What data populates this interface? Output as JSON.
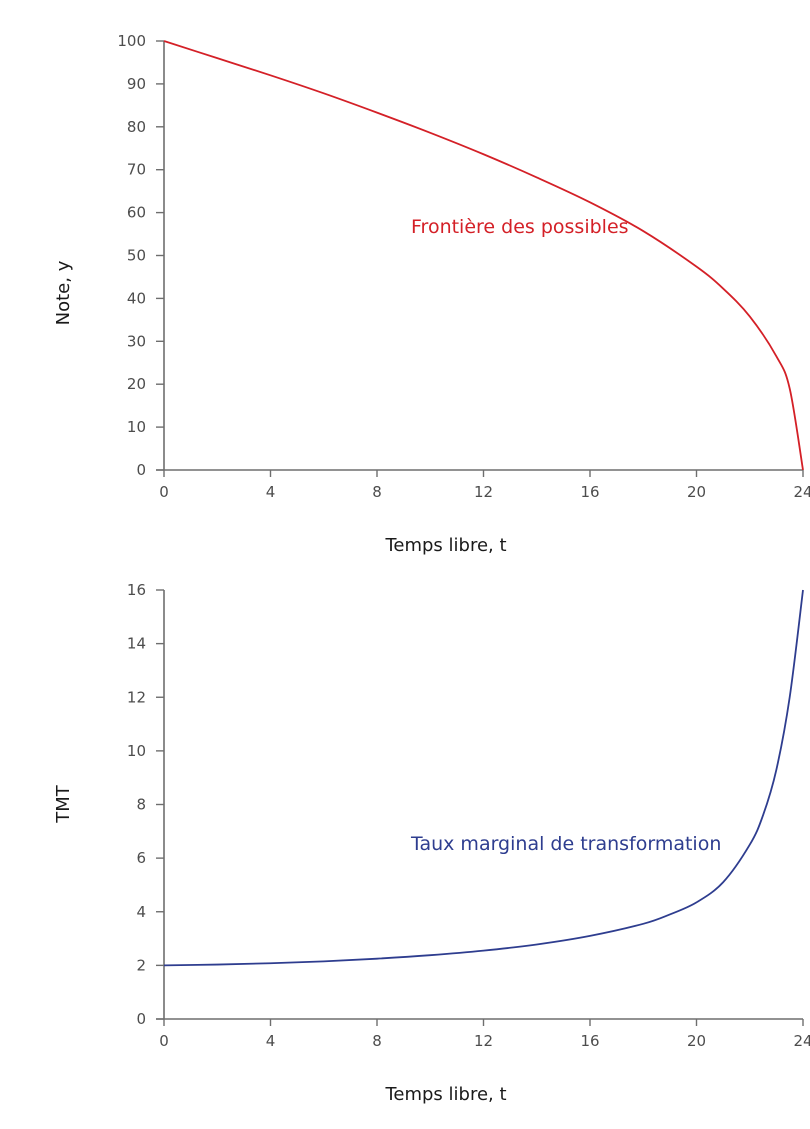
{
  "chart_data": [
    {
      "type": "line",
      "title": "",
      "xlabel": "Temps libre, t",
      "ylabel": "Note, y",
      "xlim": [
        0,
        24
      ],
      "ylim": [
        0,
        100
      ],
      "grid": false,
      "x_ticks": [
        0,
        4,
        8,
        12,
        16,
        20,
        24
      ],
      "y_ticks": [
        0,
        10,
        20,
        30,
        40,
        50,
        60,
        70,
        80,
        90,
        100
      ],
      "series": [
        {
          "name": "Frontière des possibles",
          "color": "#d42027",
          "x": [
            0,
            2,
            4,
            6,
            8,
            10,
            12,
            14,
            16,
            18,
            20,
            21,
            22,
            23,
            23.5,
            24
          ],
          "y": [
            100,
            96,
            92,
            87.8,
            83.3,
            78.6,
            73.6,
            68.2,
            62.4,
            55.7,
            47.4,
            42.3,
            35.8,
            26.5,
            19,
            0
          ]
        }
      ],
      "annotations": [
        {
          "text": "Frontière des possibles",
          "x": 11.5,
          "y": 57,
          "color": "#d42027"
        }
      ]
    },
    {
      "type": "line",
      "title": "",
      "xlabel": "Temps libre, t",
      "ylabel": "TMT",
      "xlim": [
        0,
        24
      ],
      "ylim": [
        0,
        16
      ],
      "grid": false,
      "x_ticks": [
        0,
        4,
        8,
        12,
        16,
        20,
        24
      ],
      "y_ticks": [
        0,
        2,
        4,
        6,
        8,
        10,
        12,
        14,
        16
      ],
      "series": [
        {
          "name": "Taux marginal de transformation",
          "color": "#2e3d8f",
          "x": [
            0,
            2,
            4,
            6,
            8,
            10,
            12,
            14,
            16,
            18,
            19,
            20,
            21,
            22,
            22.5,
            23,
            23.5,
            24
          ],
          "y": [
            2.0,
            2.03,
            2.08,
            2.15,
            2.25,
            2.38,
            2.55,
            2.78,
            3.1,
            3.55,
            3.9,
            4.35,
            5.1,
            6.5,
            7.6,
            9.3,
            12,
            16
          ]
        }
      ],
      "annotations": [
        {
          "text": "Taux marginal de transformation",
          "x": 11.5,
          "y": 6.2,
          "color": "#2e3d8f"
        }
      ]
    }
  ],
  "top": {
    "ylabel": "Note, y",
    "xlabel": "Temps libre, t",
    "curve_label": "Frontière des possibles",
    "y_tick_labels": [
      "0",
      "10",
      "20",
      "30",
      "40",
      "50",
      "60",
      "70",
      "80",
      "90",
      "100"
    ],
    "x_tick_labels": [
      "0",
      "4",
      "8",
      "12",
      "16",
      "20",
      "24"
    ]
  },
  "bottom": {
    "ylabel": "TMT",
    "xlabel": "Temps libre, t",
    "curve_label": "Taux marginal de transformation",
    "y_tick_labels": [
      "0",
      "2",
      "4",
      "6",
      "8",
      "10",
      "12",
      "14",
      "16"
    ],
    "x_tick_labels": [
      "0",
      "4",
      "8",
      "12",
      "16",
      "20",
      "24"
    ]
  }
}
